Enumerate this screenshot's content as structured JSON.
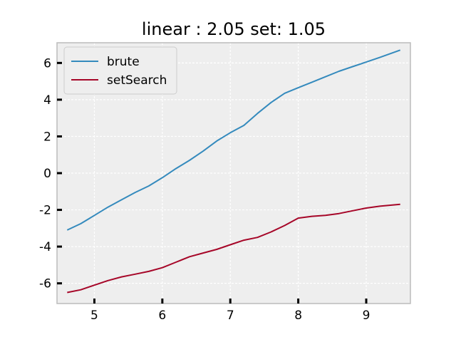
{
  "chart_data": {
    "type": "line",
    "title": "linear : 2.05 set: 1.05",
    "xlabel": "",
    "ylabel": "",
    "xlim": [
      4.45,
      9.65
    ],
    "ylim": [
      -7.1,
      7.1
    ],
    "xticks": [
      5,
      6,
      7,
      8,
      9
    ],
    "yticks": [
      6,
      4,
      2,
      0,
      -2,
      -4,
      -6
    ],
    "grid": true,
    "legend_position": "top-left",
    "colors": {
      "brute": "#348abd",
      "setSearch": "#a60628",
      "axes_bg": "#eeeeee",
      "grid": "#ffffff"
    },
    "series": [
      {
        "name": "brute",
        "x": [
          4.6,
          4.8,
          5.0,
          5.2,
          5.4,
          5.6,
          5.8,
          6.0,
          6.2,
          6.4,
          6.6,
          6.8,
          7.0,
          7.2,
          7.4,
          7.6,
          7.8,
          8.0,
          8.2,
          8.4,
          8.6,
          8.8,
          9.0,
          9.2,
          9.5
        ],
        "y": [
          -3.1,
          -2.75,
          -2.3,
          -1.85,
          -1.45,
          -1.05,
          -0.7,
          -0.25,
          0.25,
          0.7,
          1.2,
          1.75,
          2.2,
          2.6,
          3.25,
          3.85,
          4.35,
          4.65,
          4.95,
          5.25,
          5.55,
          5.8,
          6.05,
          6.3,
          6.7
        ]
      },
      {
        "name": "setSearch",
        "x": [
          4.6,
          4.8,
          5.0,
          5.2,
          5.4,
          5.6,
          5.8,
          6.0,
          6.2,
          6.4,
          6.6,
          6.8,
          7.0,
          7.2,
          7.4,
          7.6,
          7.8,
          8.0,
          8.2,
          8.4,
          8.6,
          8.8,
          9.0,
          9.2,
          9.5
        ],
        "y": [
          -6.5,
          -6.35,
          -6.1,
          -5.85,
          -5.65,
          -5.5,
          -5.35,
          -5.15,
          -4.85,
          -4.55,
          -4.35,
          -4.15,
          -3.9,
          -3.65,
          -3.5,
          -3.2,
          -2.85,
          -2.45,
          -2.35,
          -2.3,
          -2.2,
          -2.05,
          -1.9,
          -1.8,
          -1.7
        ]
      }
    ]
  }
}
